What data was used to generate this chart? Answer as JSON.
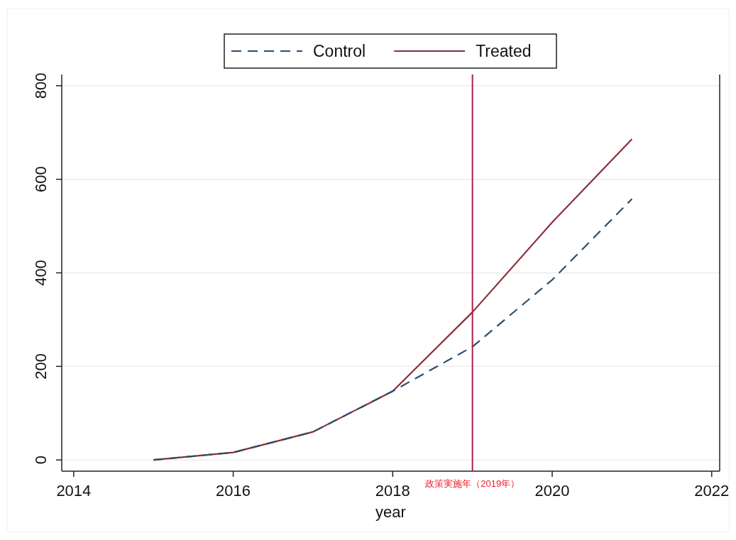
{
  "chart_data": {
    "type": "line",
    "xlabel": "year",
    "x": [
      2015,
      2016,
      2017,
      2018,
      2019,
      2020,
      2021
    ],
    "series": [
      {
        "name": "Control",
        "color": "#2e4d6b",
        "line_style": "dashed",
        "values": [
          0,
          16,
          60,
          147,
          242,
          385,
          558
        ]
      },
      {
        "name": "Treated",
        "color": "#8c2d3b",
        "line_style": "solid",
        "values": [
          0,
          16,
          60,
          147,
          316,
          508,
          686
        ]
      }
    ],
    "xlim": [
      2013.85,
      2022.1
    ],
    "ylim": [
      -24,
      824
    ],
    "xticks": [
      2014,
      2016,
      2018,
      2020,
      2022
    ],
    "yticks": [
      0,
      200,
      400,
      600,
      800
    ],
    "grid": "y",
    "legend": "top",
    "ref_lines": [
      {
        "axis": "x",
        "value": 2019,
        "label": "政策実施年（2019年）",
        "color": "#b01e46"
      }
    ]
  }
}
